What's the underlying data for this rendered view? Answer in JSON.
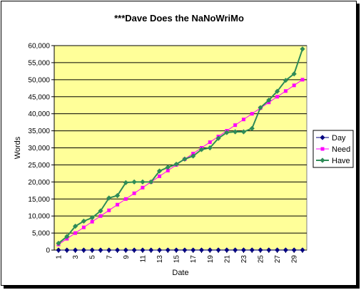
{
  "chart_data": {
    "type": "line",
    "title": "***Dave Does the NaNoWriMo",
    "xlabel": "Date",
    "ylabel": "Words",
    "ylim": [
      0,
      60000
    ],
    "ytick_step": 5000,
    "ytick_labels": [
      "0",
      "5,000",
      "10,000",
      "15,000",
      "20,000",
      "25,000",
      "30,000",
      "35,000",
      "40,000",
      "45,000",
      "50,000",
      "55,000",
      "60,000"
    ],
    "x": [
      1,
      2,
      3,
      4,
      5,
      6,
      7,
      8,
      9,
      10,
      11,
      12,
      13,
      14,
      15,
      16,
      17,
      18,
      19,
      20,
      21,
      22,
      23,
      24,
      25,
      26,
      27,
      28,
      29,
      30
    ],
    "xtick_labels": [
      "1",
      "3",
      "5",
      "7",
      "9",
      "11",
      "13",
      "15",
      "17",
      "19",
      "21",
      "23",
      "25",
      "27",
      "29"
    ],
    "grid": "horizontal",
    "plot_background": "#ffff99",
    "legend_position": "right",
    "series": [
      {
        "name": "Day",
        "color": "#000080",
        "marker": "diamond",
        "values": [
          1,
          2,
          3,
          4,
          5,
          6,
          7,
          8,
          9,
          10,
          11,
          12,
          13,
          14,
          15,
          16,
          17,
          18,
          19,
          20,
          21,
          22,
          23,
          24,
          25,
          26,
          27,
          28,
          29,
          30
        ]
      },
      {
        "name": "Need",
        "color": "#ff00ff",
        "marker": "square",
        "values": [
          1667,
          3333,
          5000,
          6667,
          8333,
          10000,
          11667,
          13333,
          15000,
          16667,
          18333,
          20000,
          21667,
          23333,
          25000,
          26667,
          28333,
          30000,
          31667,
          33333,
          35000,
          36667,
          38333,
          40000,
          41667,
          43333,
          45000,
          46667,
          48333,
          50000
        ]
      },
      {
        "name": "Have",
        "color": "#2e8b57",
        "marker": "diamond",
        "values": [
          2000,
          4000,
          7000,
          8500,
          9500,
          11500,
          15300,
          16000,
          19800,
          20000,
          20000,
          20000,
          23200,
          24300,
          25200,
          26700,
          27600,
          29500,
          30000,
          32800,
          34500,
          34700,
          34700,
          35700,
          41800,
          44000,
          46600,
          49800,
          51700,
          59000
        ]
      }
    ]
  }
}
